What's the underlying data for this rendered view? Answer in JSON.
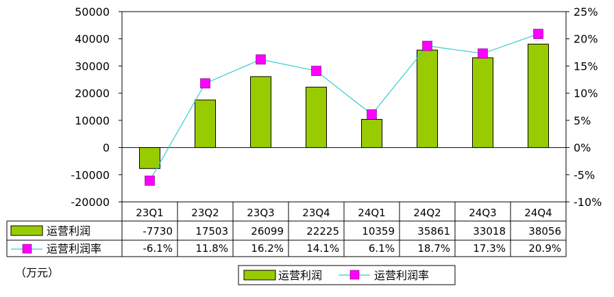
{
  "chart_data": {
    "type": "bar",
    "categories": [
      "23Q1",
      "23Q2",
      "23Q3",
      "23Q4",
      "24Q1",
      "24Q2",
      "24Q3",
      "24Q4"
    ],
    "series": [
      {
        "name": "运营利润",
        "kind": "bar",
        "axis": "left",
        "values": [
          -7730,
          17503,
          26099,
          22225,
          10359,
          35861,
          33018,
          38056
        ],
        "labels": [
          "-7730",
          "17503",
          "26099",
          "22225",
          "10359",
          "35861",
          "33018",
          "38056"
        ]
      },
      {
        "name": "运营利润率",
        "kind": "line",
        "axis": "right",
        "values": [
          -6.1,
          11.8,
          16.2,
          14.1,
          6.1,
          18.7,
          17.3,
          20.9
        ],
        "labels": [
          "-6.1%",
          "11.8%",
          "16.2%",
          "14.1%",
          "6.1%",
          "18.7%",
          "17.3%",
          "20.9%"
        ]
      }
    ],
    "ylim": [
      -20000,
      50000
    ],
    "y2lim": [
      -10,
      25
    ],
    "yticks": [
      "50000",
      "40000",
      "30000",
      "20000",
      "10000",
      "0",
      "-10000",
      "-20000"
    ],
    "y2ticks": [
      "25%",
      "20%",
      "15%",
      "10%",
      "5%",
      "0%",
      "-5%",
      "-10%"
    ],
    "unit_label": "（万元）",
    "legend": [
      "运营利润",
      "运营利润率"
    ],
    "legend_position": "bottom",
    "colors": {
      "bar": "#99cc00",
      "line": "#33cccc",
      "marker": "#ff00ff",
      "grid": "#000000"
    },
    "grid": false,
    "data_table": true
  }
}
